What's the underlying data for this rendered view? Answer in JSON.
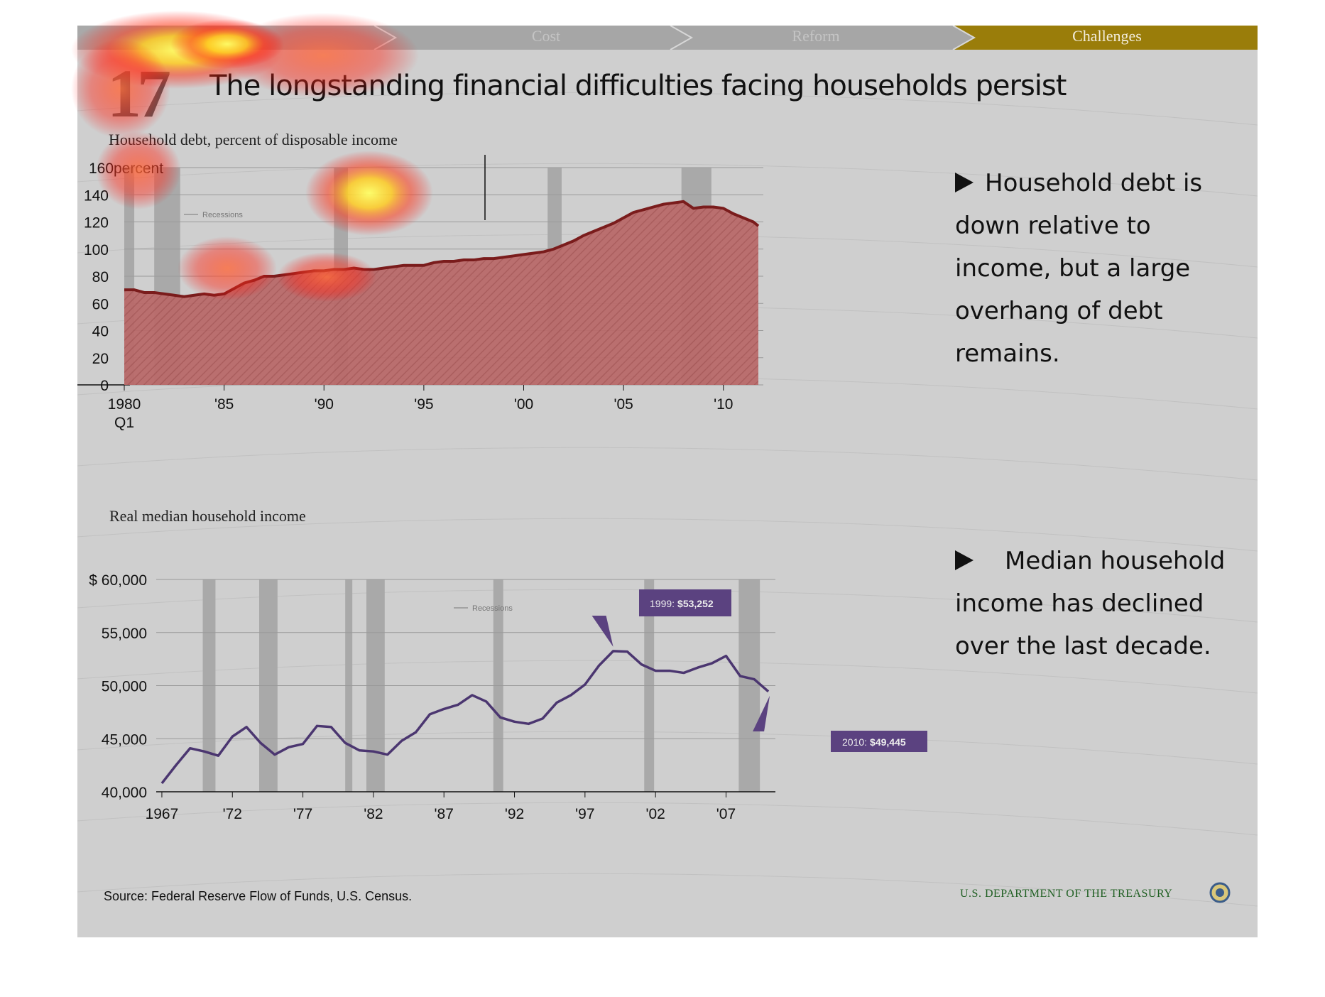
{
  "nav": {
    "steps": [
      {
        "label": ""
      },
      {
        "label": "Cost"
      },
      {
        "label": "Reform"
      },
      {
        "label": "Challenges"
      }
    ],
    "active_color": "#9a7d0a"
  },
  "slide": {
    "number": "17",
    "title": "The longstanding financial difficulties facing households persist"
  },
  "notes": {
    "debt": "Household debt is down relative to income, but a large overhang of debt remains.",
    "income": "Median household income has declined over the last decade."
  },
  "footer": {
    "source": "Source: Federal Reserve Flow of Funds, U.S. Census.",
    "agency": "U.S. DEPARTMENT OF THE TREASURY"
  },
  "chart_data": [
    {
      "type": "area",
      "title": "Household debt, percent of disposable income",
      "ylim": [
        0,
        160
      ],
      "y_ticks": [
        "0",
        "20",
        "40",
        "60",
        "80",
        "100",
        "120",
        "140",
        "160"
      ],
      "y_unit_label": "percent",
      "x_ticks": [
        {
          "x": 1980,
          "label": "1980",
          "sublabel": "Q1"
        },
        {
          "x": 1985,
          "label": "'85"
        },
        {
          "x": 1990,
          "label": "'90"
        },
        {
          "x": 1995,
          "label": "'95"
        },
        {
          "x": 2000,
          "label": "'00"
        },
        {
          "x": 2005,
          "label": "'05"
        },
        {
          "x": 2010,
          "label": "'10"
        }
      ],
      "xlim": [
        1980,
        2012
      ],
      "legend": {
        "label": "Recessions",
        "placement": "top-left"
      },
      "recessions": [
        [
          1980.0,
          1980.5
        ],
        [
          1981.5,
          1982.8
        ],
        [
          1990.5,
          1991.2
        ],
        [
          2001.2,
          2001.9
        ],
        [
          2007.9,
          2009.4
        ]
      ],
      "fill_color": "#b96a6a",
      "line_color": "#7a1c1c",
      "x": [
        1980.0,
        1980.5,
        1981.0,
        1981.5,
        1982.0,
        1982.5,
        1983.0,
        1983.5,
        1984.0,
        1984.5,
        1985.0,
        1985.5,
        1986.0,
        1986.5,
        1987.0,
        1987.5,
        1988.0,
        1988.5,
        1989.0,
        1989.5,
        1990.0,
        1990.5,
        1991.0,
        1991.5,
        1992.0,
        1992.5,
        1993.0,
        1993.5,
        1994.0,
        1994.5,
        1995.0,
        1995.5,
        1996.0,
        1996.5,
        1997.0,
        1997.5,
        1998.0,
        1998.5,
        1999.0,
        1999.5,
        2000.0,
        2000.5,
        2001.0,
        2001.5,
        2002.0,
        2002.5,
        2003.0,
        2003.5,
        2004.0,
        2004.5,
        2005.0,
        2005.5,
        2006.0,
        2006.5,
        2007.0,
        2007.5,
        2008.0,
        2008.5,
        2009.0,
        2009.5,
        2010.0,
        2010.5,
        2011.0,
        2011.5,
        2011.75
      ],
      "values": [
        70,
        70,
        68,
        68,
        67,
        66,
        65,
        66,
        67,
        66,
        67,
        71,
        75,
        77,
        80,
        80,
        81,
        82,
        83,
        84,
        84,
        85,
        85,
        86,
        85,
        85,
        86,
        87,
        88,
        88,
        88,
        90,
        91,
        91,
        92,
        92,
        93,
        93,
        94,
        95,
        96,
        97,
        98,
        100,
        103,
        106,
        110,
        113,
        116,
        119,
        123,
        127,
        129,
        131,
        133,
        134,
        135,
        130,
        131,
        131,
        130,
        126,
        123,
        120,
        117
      ]
    },
    {
      "type": "line",
      "title": "Real median household income",
      "ylim": [
        40000,
        60000
      ],
      "y_ticks": [
        "40,000",
        "45,000",
        "50,000",
        "55,000",
        "$ 60,000"
      ],
      "x_ticks": [
        {
          "x": 1967,
          "label": "1967"
        },
        {
          "x": 1972,
          "label": "'72"
        },
        {
          "x": 1977,
          "label": "'77"
        },
        {
          "x": 1982,
          "label": "'82"
        },
        {
          "x": 1987,
          "label": "'87"
        },
        {
          "x": 1992,
          "label": "'92"
        },
        {
          "x": 1997,
          "label": "'97"
        },
        {
          "x": 2002,
          "label": "'02"
        },
        {
          "x": 2007,
          "label": "'07"
        }
      ],
      "xlim": [
        1966.6,
        2010.5
      ],
      "legend": {
        "label": "Recessions",
        "placement": "top-center"
      },
      "recessions": [
        [
          1969.9,
          1970.8
        ],
        [
          1973.9,
          1975.2
        ],
        [
          1980.0,
          1980.5
        ],
        [
          1981.5,
          1982.8
        ],
        [
          1990.5,
          1991.2
        ],
        [
          2001.2,
          2001.9
        ],
        [
          2007.9,
          2009.4
        ]
      ],
      "line_color": "#4b3670",
      "x": [
        1967,
        1968,
        1969,
        1970,
        1971,
        1972,
        1973,
        1974,
        1975,
        1976,
        1977,
        1978,
        1979,
        1980,
        1981,
        1982,
        1983,
        1984,
        1985,
        1986,
        1987,
        1988,
        1989,
        1990,
        1991,
        1992,
        1993,
        1994,
        1995,
        1996,
        1997,
        1998,
        1999,
        2000,
        2001,
        2002,
        2003,
        2004,
        2005,
        2006,
        2007,
        2008,
        2009,
        2010
      ],
      "values": [
        40800,
        42500,
        44100,
        43800,
        43400,
        45200,
        46100,
        44600,
        43500,
        44200,
        44500,
        46200,
        46100,
        44600,
        43900,
        43800,
        43500,
        44800,
        45600,
        47300,
        47800,
        48200,
        49100,
        48500,
        47000,
        46600,
        46400,
        46900,
        48400,
        49100,
        50100,
        51900,
        53252,
        53200,
        52000,
        51400,
        51400,
        51200,
        51700,
        52100,
        52800,
        50900,
        50600,
        49445
      ],
      "annotations": [
        {
          "year": "1999:",
          "value": "$53,252"
        },
        {
          "year": "2010:",
          "value": "$49,445"
        }
      ],
      "annotation_color": "#5b4280"
    }
  ]
}
